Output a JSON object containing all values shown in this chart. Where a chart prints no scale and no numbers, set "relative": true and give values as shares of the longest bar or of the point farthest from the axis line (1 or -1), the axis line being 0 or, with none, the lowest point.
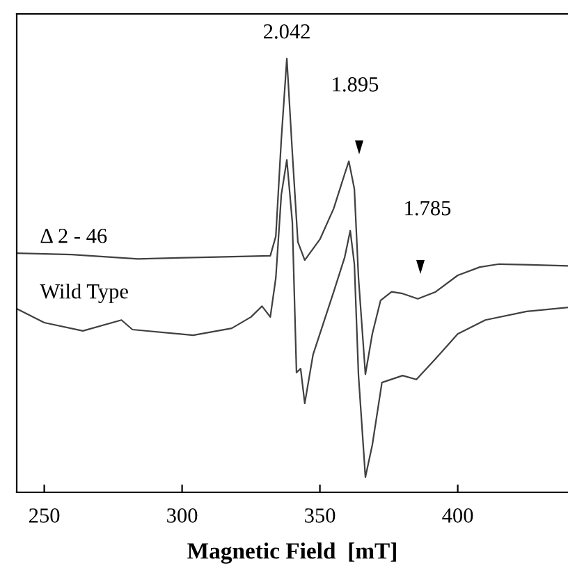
{
  "chart_data": {
    "type": "line",
    "relative": true,
    "xlabel": "Magnetic Field  [mT]",
    "xlim": [
      240,
      440
    ],
    "xticks": [
      250,
      300,
      350,
      400
    ],
    "grid": false,
    "marker": "none",
    "line_style": "solid",
    "series": [
      {
        "name": "Δ 2 - 46",
        "color": "#404040",
        "x": [
          240,
          260,
          284,
          310,
          332,
          334,
          336,
          338,
          340,
          342,
          344.5,
          350,
          355,
          359,
          360.5,
          362.5,
          364,
          366.5,
          369,
          372,
          376,
          380,
          385.5,
          392,
          400,
          408,
          415,
          440
        ],
        "values": [
          0.551,
          0.548,
          0.538,
          0.542,
          0.545,
          0.59,
          0.814,
          1.0,
          0.782,
          0.577,
          0.535,
          0.583,
          0.654,
          0.734,
          0.763,
          0.699,
          0.494,
          0.272,
          0.365,
          0.442,
          0.462,
          0.458,
          0.446,
          0.462,
          0.5,
          0.519,
          0.526,
          0.522
        ]
      },
      {
        "name": "Wild Type",
        "color": "#404040",
        "x": [
          240,
          250,
          264,
          278,
          282,
          304,
          318,
          325,
          329,
          332,
          334,
          336,
          338,
          340,
          341.5,
          343,
          344.5,
          347.5,
          355,
          359,
          361,
          362.5,
          364,
          366.5,
          369,
          372.5,
          380,
          385,
          392,
          400,
          410,
          425,
          440
        ],
        "values": [
          0.423,
          0.391,
          0.372,
          0.397,
          0.375,
          0.362,
          0.378,
          0.404,
          0.429,
          0.404,
          0.494,
          0.686,
          0.766,
          0.622,
          0.276,
          0.285,
          0.205,
          0.317,
          0.462,
          0.542,
          0.603,
          0.526,
          0.269,
          0.035,
          0.109,
          0.253,
          0.269,
          0.26,
          0.308,
          0.365,
          0.397,
          0.417,
          0.426
        ]
      }
    ],
    "annotations": [
      {
        "text": "2.042",
        "x": 338,
        "y": 1.0
      },
      "1.895",
      "1.785"
    ]
  }
}
